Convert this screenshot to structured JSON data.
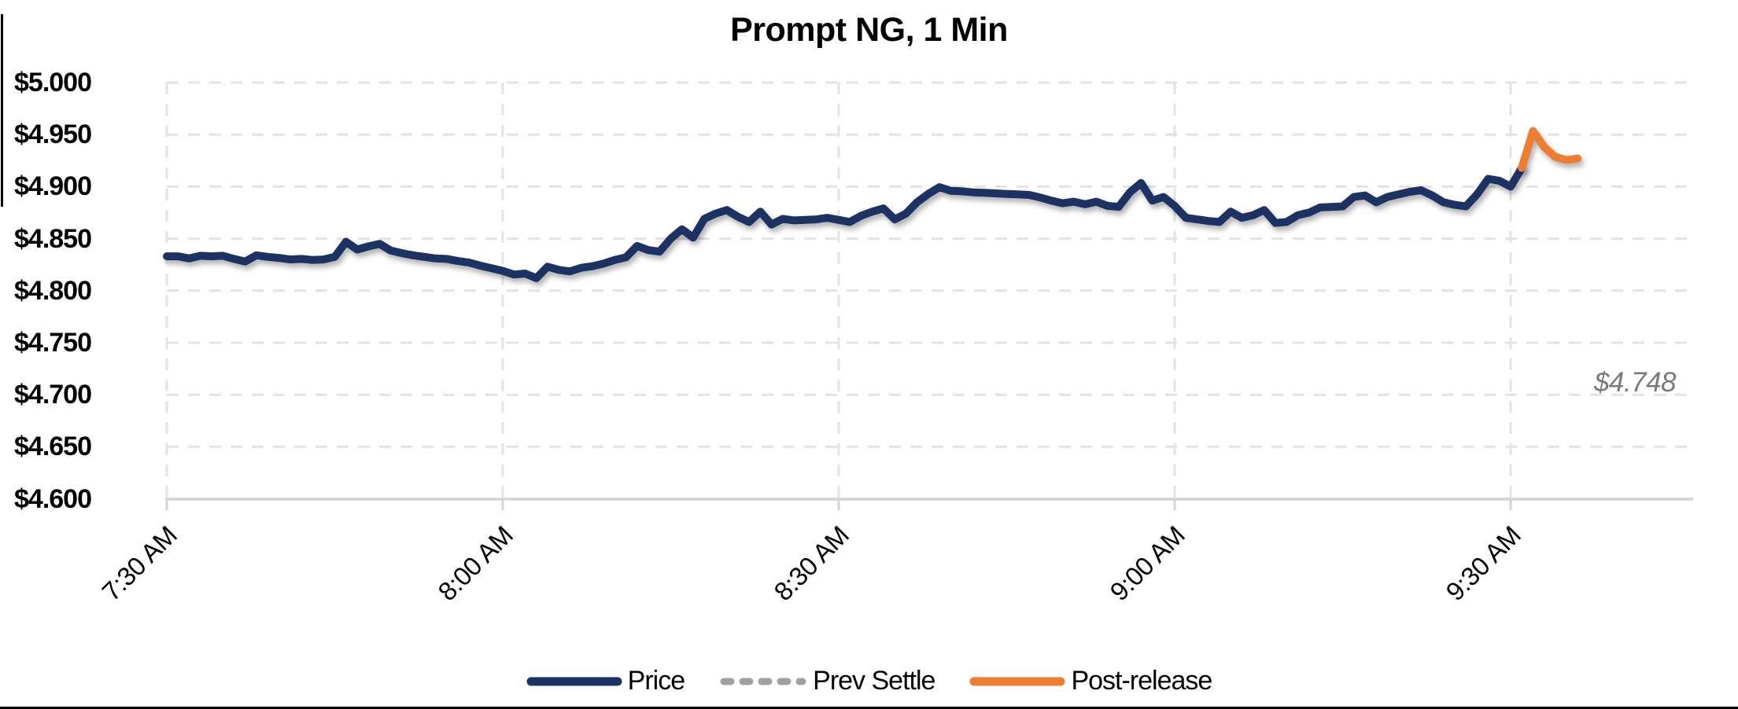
{
  "chart_data": {
    "type": "line",
    "title": "Prompt NG, 1 Min",
    "x_axis": {
      "start_time": "7:30 AM",
      "interval_min": 1,
      "ticks": [
        {
          "label": "7:30 AM",
          "minute": 0
        },
        {
          "label": "8:00 AM",
          "minute": 30
        },
        {
          "label": "8:30 AM",
          "minute": 60
        },
        {
          "label": "9:00 AM",
          "minute": 90
        },
        {
          "label": "9:30 AM",
          "minute": 120
        }
      ]
    },
    "y_axis": {
      "min": 4.6,
      "max": 5.0,
      "ticks": [
        {
          "label": "$5.000",
          "value": 5.0
        },
        {
          "label": "$4.950",
          "value": 4.95
        },
        {
          "label": "$4.900",
          "value": 4.9
        },
        {
          "label": "$4.850",
          "value": 4.85
        },
        {
          "label": "$4.800",
          "value": 4.8
        },
        {
          "label": "$4.750",
          "value": 4.75
        },
        {
          "label": "$4.700",
          "value": 4.7
        },
        {
          "label": "$4.650",
          "value": 4.65
        },
        {
          "label": "$4.600",
          "value": 4.6
        }
      ]
    },
    "grid": {
      "on": true,
      "color": "#e3e3e3",
      "axis_color": "#d4d4d4"
    },
    "series": [
      {
        "name": "Price",
        "color": "#1b3262",
        "style": "solid",
        "start_min": 0,
        "interval_min": 1,
        "values": [
          4.833,
          4.833,
          4.831,
          4.8335,
          4.833,
          4.8335,
          4.8305,
          4.828,
          4.834,
          4.8325,
          4.8315,
          4.83,
          4.8305,
          4.8295,
          4.83,
          4.8325,
          4.847,
          4.8395,
          4.8425,
          4.845,
          4.8385,
          4.836,
          4.834,
          4.8325,
          4.831,
          4.8305,
          4.8285,
          4.827,
          4.824,
          4.8215,
          4.819,
          4.8155,
          4.8165,
          4.812,
          4.823,
          4.82,
          4.8185,
          4.822,
          4.8235,
          4.826,
          4.8295,
          4.832,
          4.843,
          4.839,
          4.8375,
          4.85,
          4.859,
          4.851,
          4.869,
          4.874,
          4.8775,
          4.871,
          4.866,
          4.876,
          4.8635,
          4.869,
          4.8675,
          4.868,
          4.8685,
          4.87,
          4.868,
          4.866,
          4.872,
          4.876,
          4.879,
          4.8685,
          4.874,
          4.885,
          4.893,
          4.8995,
          4.896,
          4.8955,
          4.8945,
          4.894,
          4.8935,
          4.893,
          4.8925,
          4.892,
          4.8895,
          4.8865,
          4.884,
          4.8855,
          4.883,
          4.8855,
          4.8815,
          4.8805,
          4.8945,
          4.9035,
          4.8865,
          4.89,
          4.8815,
          4.87,
          4.8685,
          4.867,
          4.866,
          4.876,
          4.87,
          4.8725,
          4.8775,
          4.865,
          4.866,
          4.8725,
          4.875,
          4.88,
          4.8805,
          4.881,
          4.89,
          4.8915,
          4.885,
          4.89,
          4.8925,
          4.895,
          4.8965,
          4.8915,
          4.885,
          4.8825,
          4.881,
          4.8925,
          4.9075,
          4.9055,
          4.9,
          4.918
        ]
      },
      {
        "name": "Post-release",
        "color": "#ed7d31",
        "style": "solid",
        "start_min": 121,
        "interval_min": 1,
        "values": [
          4.918,
          4.9535,
          4.938,
          4.9285,
          4.9255,
          4.927
        ]
      },
      {
        "name": "Prev Settle",
        "color": "#7f7f7f",
        "style": "dashed",
        "value": 4.748
      }
    ],
    "annotation": {
      "text": "$4.748",
      "value": 4.748
    },
    "legend": [
      {
        "label": "Price",
        "swatch": "solid",
        "color": "#1b3262"
      },
      {
        "label": "Prev Settle",
        "swatch": "dashed",
        "color": "#a0a0a0"
      },
      {
        "label": "Post-release",
        "swatch": "solid",
        "color": "#ed7d31"
      }
    ],
    "legend_position": "bottom"
  }
}
